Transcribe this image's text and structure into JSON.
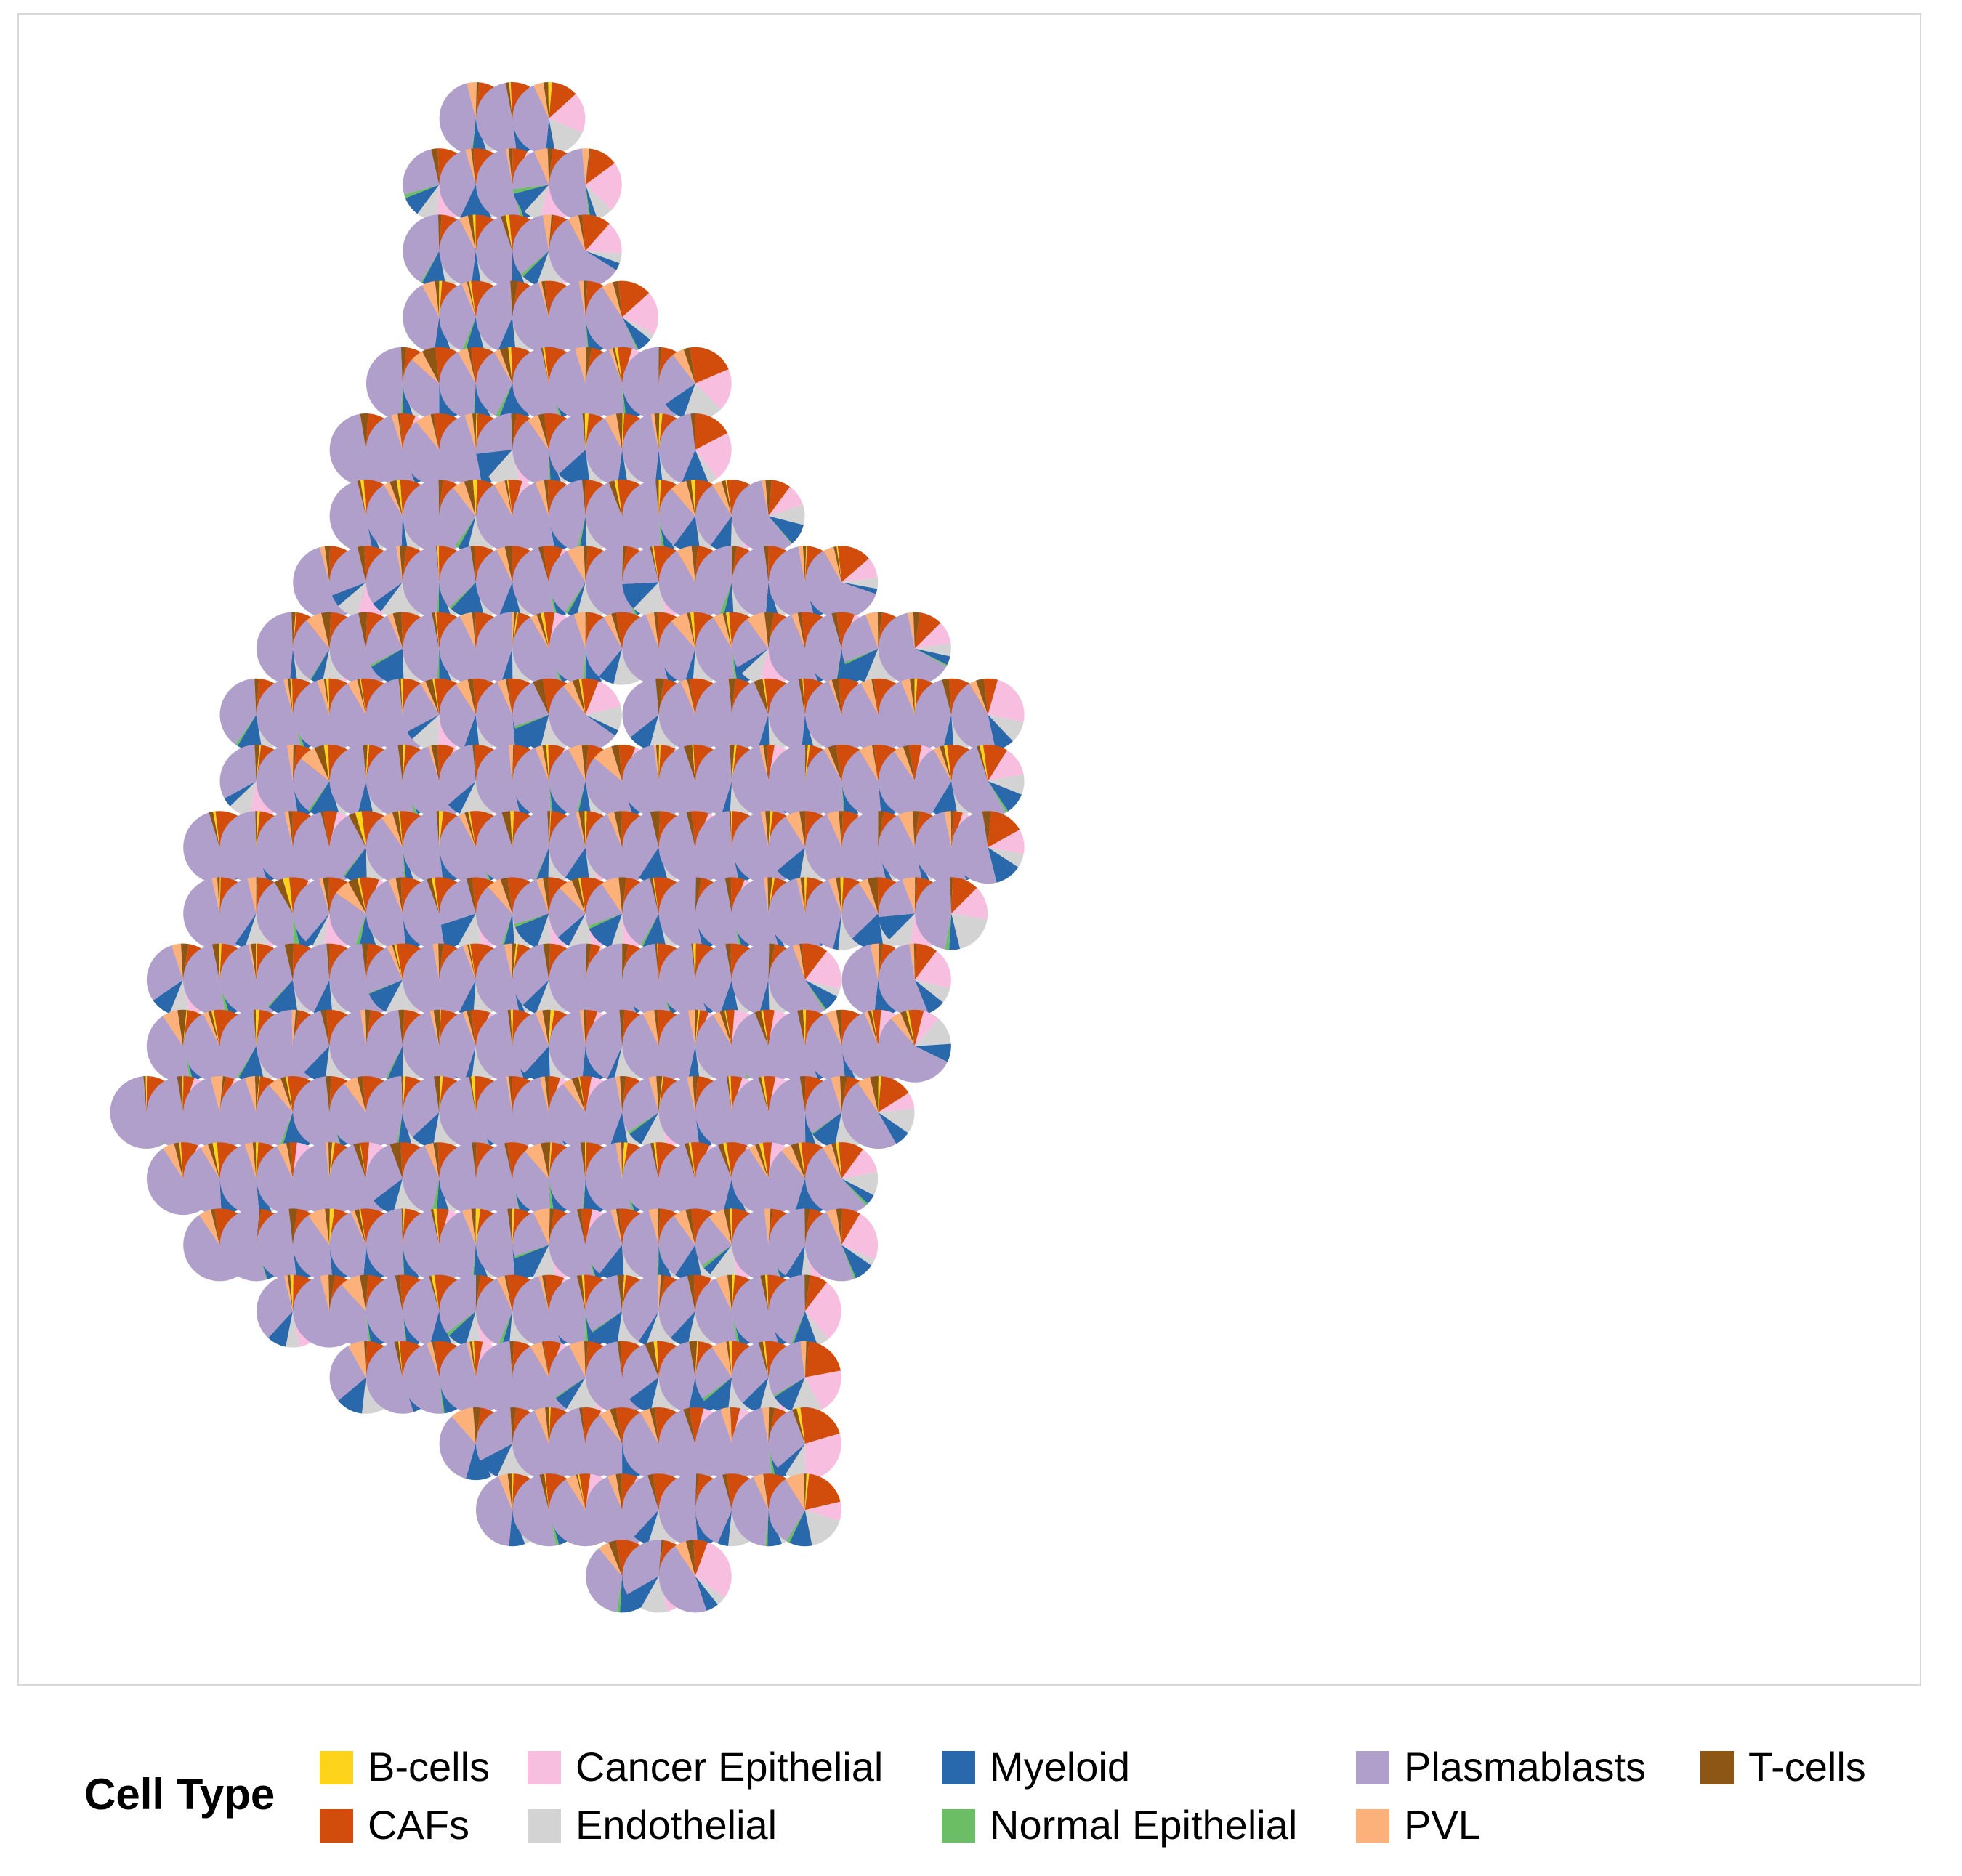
{
  "legend": {
    "title": "Cell Type",
    "items": [
      {
        "label": "B-cells",
        "color": "#FDD31C"
      },
      {
        "label": "CAFs",
        "color": "#D24D0C"
      },
      {
        "label": "Cancer Epithelial",
        "color": "#F8BEDF"
      },
      {
        "label": "Endothelial",
        "color": "#D3D3D3"
      },
      {
        "label": "Myeloid",
        "color": "#2968AB"
      },
      {
        "label": "Normal Epithelial",
        "color": "#6BBE66"
      },
      {
        "label": "Plasmablasts",
        "color": "#B09FCB"
      },
      {
        "label": "PVL",
        "color": "#FCB07A"
      },
      {
        "label": "T-cells",
        "color": "#8E5614"
      }
    ]
  },
  "chart_data": {
    "type": "pie",
    "grid": false,
    "legend_position": "bottom",
    "categories": [
      "B-cells",
      "CAFs",
      "Cancer Epithelial",
      "Endothelial",
      "Myeloid",
      "Normal Epithelial",
      "Plasmablasts",
      "PVL",
      "T-cells"
    ],
    "colors": [
      "#FDD31C",
      "#D24D0C",
      "#F8BEDF",
      "#D3D3D3",
      "#2968AB",
      "#6BBE66",
      "#B09FCB",
      "#FCB07A",
      "#8E5614"
    ],
    "spot_rows": [
      {
        "row": 0,
        "cols": [
          11,
          12,
          13
        ]
      },
      {
        "row": 1,
        "cols": [
          10,
          11,
          12,
          13,
          14
        ]
      },
      {
        "row": 2,
        "cols": [
          10,
          11,
          12,
          13,
          14
        ]
      },
      {
        "row": 3,
        "cols": [
          10,
          11,
          12,
          13,
          14,
          15
        ]
      },
      {
        "row": 4,
        "cols": [
          9,
          10,
          11,
          12,
          13,
          14,
          15,
          16,
          17
        ]
      },
      {
        "row": 5,
        "cols": [
          8,
          9,
          10,
          11,
          12,
          13,
          14,
          15,
          16,
          17
        ]
      },
      {
        "row": 6,
        "cols": [
          8,
          9,
          10,
          11,
          12,
          13,
          14,
          15,
          16,
          17,
          18,
          19
        ]
      },
      {
        "row": 7,
        "cols": [
          7,
          8,
          9,
          10,
          11,
          12,
          13,
          14,
          15,
          16,
          17,
          18,
          19,
          20,
          21
        ]
      },
      {
        "row": 8,
        "cols": [
          6,
          7,
          8,
          9,
          10,
          11,
          12,
          13,
          14,
          15,
          16,
          17,
          18,
          19,
          20,
          21,
          22,
          23
        ]
      },
      {
        "row": 9,
        "cols": [
          5,
          6,
          7,
          8,
          9,
          10,
          11,
          12,
          13,
          14,
          16,
          17,
          18,
          19,
          20,
          21,
          22,
          23,
          24,
          25
        ]
      },
      {
        "row": 10,
        "cols": [
          5,
          6,
          7,
          8,
          9,
          10,
          11,
          12,
          13,
          14,
          15,
          16,
          17,
          18,
          19,
          20,
          21,
          22,
          23,
          24,
          25
        ]
      },
      {
        "row": 11,
        "cols": [
          4,
          5,
          6,
          7,
          8,
          9,
          10,
          11,
          12,
          13,
          14,
          15,
          16,
          17,
          18,
          19,
          20,
          21,
          22,
          23,
          24,
          25
        ]
      },
      {
        "row": 12,
        "cols": [
          4,
          5,
          6,
          7,
          8,
          9,
          10,
          11,
          12,
          13,
          14,
          15,
          16,
          17,
          18,
          19,
          20,
          21,
          22,
          23,
          24
        ]
      },
      {
        "row": 13,
        "cols": [
          3,
          4,
          5,
          6,
          7,
          8,
          9,
          10,
          11,
          12,
          13,
          14,
          15,
          16,
          17,
          18,
          19,
          20,
          22,
          23
        ]
      },
      {
        "row": 14,
        "cols": [
          3,
          4,
          5,
          6,
          7,
          8,
          9,
          10,
          11,
          12,
          13,
          14,
          15,
          16,
          17,
          18,
          19,
          20,
          21,
          22,
          23
        ]
      },
      {
        "row": 15,
        "cols": [
          2,
          3,
          4,
          5,
          6,
          7,
          8,
          9,
          10,
          11,
          12,
          13,
          14,
          15,
          16,
          17,
          18,
          19,
          20,
          21,
          22
        ]
      },
      {
        "row": 16,
        "cols": [
          3,
          4,
          5,
          6,
          7,
          8,
          9,
          10,
          11,
          12,
          13,
          14,
          15,
          16,
          17,
          18,
          19,
          20,
          21
        ]
      },
      {
        "row": 17,
        "cols": [
          4,
          5,
          6,
          7,
          8,
          9,
          10,
          11,
          12,
          13,
          14,
          15,
          16,
          17,
          18,
          19,
          20,
          21
        ]
      },
      {
        "row": 18,
        "cols": [
          6,
          7,
          8,
          9,
          10,
          11,
          12,
          13,
          14,
          15,
          16,
          17,
          18,
          19,
          20
        ]
      },
      {
        "row": 19,
        "cols": [
          8,
          9,
          10,
          11,
          12,
          13,
          14,
          15,
          16,
          17,
          18,
          19,
          20
        ]
      },
      {
        "row": 20,
        "cols": [
          11,
          12,
          13,
          14,
          15,
          16,
          17,
          18,
          19,
          20
        ]
      },
      {
        "row": 21,
        "cols": [
          12,
          13,
          14,
          15,
          16,
          17,
          18,
          19,
          20
        ]
      },
      {
        "row": 22,
        "cols": [
          15,
          16,
          17
        ]
      }
    ],
    "typical_composition": {
      "B-cells": 0.01,
      "CAFs": 0.12,
      "Cancer Epithelial": 0.18,
      "Endothelial": 0.1,
      "Myeloid": 0.07,
      "Normal Epithelial": 0.01,
      "Plasmablasts": 0.45,
      "PVL": 0.04,
      "T-cells": 0.02
    }
  }
}
